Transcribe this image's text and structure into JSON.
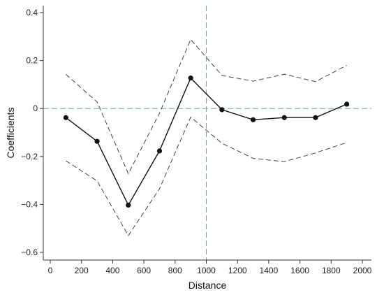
{
  "chart_data": {
    "type": "line",
    "xlabel": "Distance",
    "ylabel": "Coefficients",
    "xlim": [
      0,
      2000
    ],
    "ylim": [
      -0.6,
      0.4
    ],
    "x_ticks": [
      0,
      200,
      400,
      600,
      800,
      1000,
      1200,
      1400,
      1600,
      1800,
      2000
    ],
    "y_ticks": [
      -0.6,
      -0.4,
      -0.2,
      0,
      0.2,
      0.4
    ],
    "x_tick_labels": [
      "0",
      "200",
      "400",
      "600",
      "800",
      "1000",
      "1200",
      "1400",
      "1600",
      "1800",
      "2000"
    ],
    "y_tick_labels": [
      "−0.6",
      "−0.4",
      "−0.2",
      "0",
      "0.2",
      "0.4"
    ],
    "grid": false,
    "reference_lines": {
      "x": 1000,
      "y": 0
    },
    "x": [
      100,
      300,
      500,
      700,
      900,
      1100,
      1300,
      1500,
      1700,
      1900
    ],
    "series": [
      {
        "role": "estimate",
        "style": "solid-with-markers",
        "values": [
          -0.038,
          -0.137,
          -0.403,
          -0.177,
          0.127,
          -0.005,
          -0.047,
          -0.038,
          -0.038,
          0.018
        ]
      },
      {
        "role": "upper-bound",
        "style": "dashed",
        "values": [
          0.143,
          0.027,
          -0.272,
          -0.02,
          0.288,
          0.138,
          0.114,
          0.143,
          0.112,
          0.18
        ]
      },
      {
        "role": "lower-bound",
        "style": "dashed",
        "values": [
          -0.218,
          -0.302,
          -0.53,
          -0.335,
          -0.036,
          -0.145,
          -0.208,
          -0.222,
          -0.185,
          -0.142
        ]
      }
    ],
    "colors": {
      "estimate": "#111111",
      "bounds": "#444444",
      "reference": "#7aa6a0",
      "axis": "#333333"
    }
  }
}
